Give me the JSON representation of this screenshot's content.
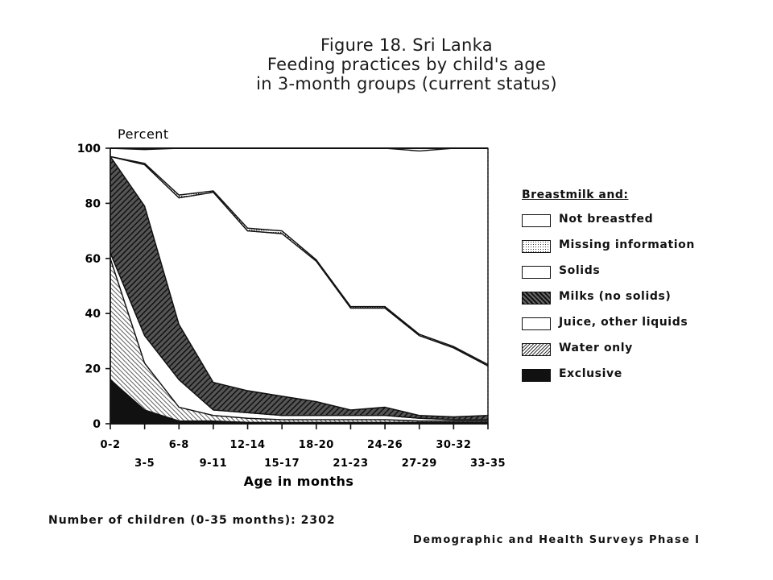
{
  "title": {
    "line1": "Figure 18. Sri Lanka",
    "line2": "Feeding practices by child's age",
    "line3": "in 3-month groups (current status)"
  },
  "footnote": "Number of children (0-35 months):  2302",
  "source": "Demographic and Health Surveys Phase I",
  "chart_data": {
    "type": "area",
    "ylabel": "Percent",
    "xlabel": "Age in months",
    "ylim": [
      0,
      100
    ],
    "yticks": [
      "0",
      "20",
      "40",
      "60",
      "80",
      "100"
    ],
    "categories": [
      "0-2",
      "3-5",
      "6-8",
      "9-11",
      "12-14",
      "15-17",
      "18-20",
      "21-23",
      "24-26",
      "27-29",
      "30-32",
      "33-35"
    ],
    "legend_title": "Breastmilk and:",
    "legend_position": "right",
    "series_stack_order": [
      "Exclusive",
      "Water only",
      "Juice, other liquids",
      "Milks (no solids)",
      "Solids",
      "Missing information",
      "Not breastfed"
    ],
    "series": [
      {
        "name": "Exclusive",
        "values": [
          16,
          5,
          1,
          1,
          0.5,
          0.5,
          0.5,
          0.5,
          0.5,
          0.5,
          0.5,
          0.5
        ]
      },
      {
        "name": "Water only",
        "values": [
          44,
          17,
          5,
          2,
          1.5,
          1,
          1,
          1,
          1,
          0.5,
          0.5,
          0.5
        ]
      },
      {
        "name": "Juice, other liquids",
        "values": [
          2,
          10,
          10,
          2,
          2,
          1.5,
          1.5,
          1.5,
          1.5,
          1,
          0.5,
          0.5
        ]
      },
      {
        "name": "Milks (no solids)",
        "values": [
          35,
          47,
          20,
          10,
          8,
          7,
          5,
          2,
          3,
          1,
          1,
          1.5
        ]
      },
      {
        "name": "Solids",
        "values": [
          0,
          15,
          46,
          69,
          58,
          59,
          51,
          37,
          36,
          29,
          25,
          18
        ]
      },
      {
        "name": "Missing information",
        "values": [
          0,
          0.5,
          1,
          0.5,
          1,
          1,
          0.5,
          0.5,
          0.5,
          0.5,
          0.5,
          0.5
        ]
      },
      {
        "name": "Not breastfed",
        "values": [
          3,
          5,
          17,
          15.5,
          29,
          30,
          40.5,
          57.5,
          57.5,
          66.5,
          72,
          78.5
        ]
      }
    ],
    "legend_order": [
      "Not breastfed",
      "Missing information",
      "Solids",
      "Milks (no solids)",
      "Juice, other liquids",
      "Water only",
      "Exclusive"
    ],
    "colors": {
      "Exclusive": "#111111",
      "Water only": "pattern-dense-diagonal",
      "Juice, other liquids": "#ffffff",
      "Milks (no solids)": "pattern-hatch",
      "Solids": "#ffffff",
      "Missing information": "pattern-stipple",
      "Not breastfed": "#ffffff"
    }
  }
}
